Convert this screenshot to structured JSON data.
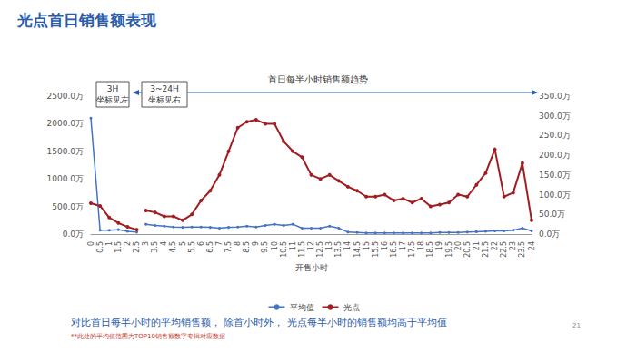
{
  "chart_data": {
    "type": "line",
    "title": "光点首日销售额表现",
    "xlabel": "开售小时",
    "categories": [
      0,
      0.5,
      1,
      1.5,
      2,
      2.5,
      3,
      3.5,
      4,
      4.5,
      5,
      5.5,
      6,
      6.5,
      7,
      7.5,
      8,
      8.5,
      9,
      9.5,
      10,
      10.5,
      11,
      11.5,
      12,
      12.5,
      13,
      13.5,
      14,
      14.5,
      15,
      15.5,
      16,
      16.5,
      17,
      17.5,
      18,
      18.5,
      19,
      19.5,
      20,
      20.5,
      21,
      21.5,
      22,
      22.5,
      23,
      23.5,
      24
    ],
    "series": [
      {
        "name": "平均值",
        "color": "#4472c4",
        "marker": "circle",
        "axis": "y",
        "values": [
          2100,
          70,
          70,
          80,
          50,
          35,
          null,
          null,
          null,
          null,
          null,
          null,
          null,
          null,
          null,
          null,
          null,
          null,
          null,
          null,
          null,
          null,
          null,
          null,
          null,
          null,
          null,
          null,
          null,
          null,
          null,
          null,
          null,
          null,
          null,
          null,
          null,
          null,
          null,
          null,
          null,
          null,
          null,
          null,
          null,
          null,
          null,
          null,
          null
        ]
      },
      {
        "name": "光点",
        "color": "#a11d21",
        "marker": "circle",
        "axis": "y",
        "values": [
          560,
          510,
          300,
          200,
          130,
          80,
          null,
          null,
          null,
          null,
          null,
          null,
          null,
          null,
          null,
          null,
          null,
          null,
          null,
          null,
          null,
          null,
          null,
          null,
          null,
          null,
          null,
          null,
          null,
          null,
          null,
          null,
          null,
          null,
          null,
          null,
          null,
          null,
          null,
          null,
          null,
          null,
          null,
          null,
          null,
          null,
          null,
          null,
          null
        ]
      },
      {
        "name": "平均值",
        "color": "#4472c4",
        "marker": "circle",
        "axis": "y2",
        "values": [
          null,
          null,
          null,
          null,
          null,
          null,
          25,
          22,
          20,
          18,
          17,
          18,
          18,
          17,
          15,
          17,
          18,
          20,
          18,
          22,
          25,
          22,
          25,
          15,
          15,
          15,
          20,
          15,
          5,
          4,
          3,
          3,
          3,
          3,
          3,
          3,
          3,
          3,
          4,
          4,
          4,
          5,
          6,
          7,
          8,
          8,
          10,
          15,
          8
        ]
      },
      {
        "name": "光点",
        "color": "#a11d21",
        "marker": "circle",
        "axis": "y2",
        "values": [
          null,
          null,
          null,
          null,
          null,
          null,
          60,
          55,
          45,
          45,
          35,
          50,
          85,
          110,
          150,
          210,
          270,
          285,
          290,
          280,
          280,
          235,
          210,
          195,
          150,
          140,
          150,
          135,
          120,
          110,
          95,
          95,
          100,
          85,
          90,
          80,
          90,
          70,
          75,
          80,
          100,
          95,
          125,
          155,
          215,
          95,
          105,
          180,
          35
        ]
      }
    ],
    "ylim": [
      0,
      2500
    ],
    "yticks": [
      {
        "value": 0,
        "label": "0.0万"
      },
      {
        "value": 500,
        "label": "500.0万"
      },
      {
        "value": 1000,
        "label": "1000.0万"
      },
      {
        "value": 1500,
        "label": "1500.0万"
      },
      {
        "value": 2000,
        "label": "2000.0万"
      },
      {
        "value": 2500,
        "label": "2500.0万"
      }
    ],
    "y2lim": [
      0,
      350
    ],
    "y2ticks": [
      {
        "value": 0,
        "label": "0.0万"
      },
      {
        "value": 50,
        "label": "50.0万"
      },
      {
        "value": 100,
        "label": "100.0万"
      },
      {
        "value": 150,
        "label": "150.0万"
      },
      {
        "value": 200,
        "label": "200.0万"
      },
      {
        "value": 250,
        "label": "250.0万"
      },
      {
        "value": 300,
        "label": "300.0万"
      },
      {
        "value": 350,
        "label": "350.0万"
      }
    ],
    "grid": false,
    "legend": "bottom",
    "annotations": {
      "left_box": [
        "3H",
        "坐标见左"
      ],
      "right_box": [
        "3~24H",
        "坐标见右"
      ],
      "trend": "首日每半小时销售额趋势",
      "footer": "对比首日每半小时的平均销售额， 除首小时外， 光点每半小时的销售额均高于平均值",
      "note": "**此处的平均值范围为TOP10销售额数字专辑对应数据",
      "page": "21"
    }
  }
}
